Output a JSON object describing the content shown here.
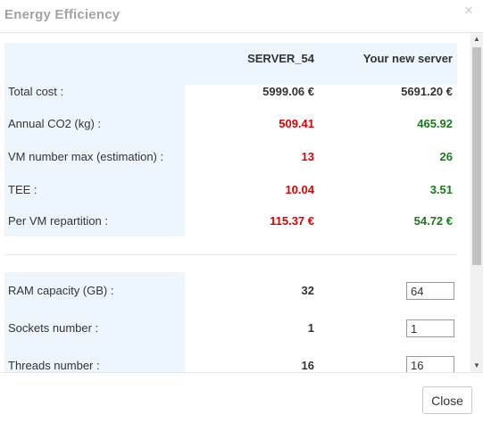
{
  "dialog": {
    "title": "Energy Efficiency",
    "close_glyph": "×",
    "close_icon": "close-icon"
  },
  "table": {
    "columns": [
      "SERVER_54",
      "Your new server"
    ],
    "summary_rows": [
      {
        "label": "Total cost :",
        "values": [
          "5999.06 €",
          "5691.20 €"
        ],
        "colors": [
          "#333333",
          "#333333"
        ]
      },
      {
        "label": "Annual CO2 (kg) :",
        "values": [
          "509.41",
          "465.92"
        ],
        "colors": [
          "#e00000",
          "#1a7a1a"
        ]
      },
      {
        "label": "VM number max (estimation) :",
        "values": [
          "13",
          "26"
        ],
        "colors": [
          "#e00000",
          "#1a7a1a"
        ]
      },
      {
        "label": "TEE :",
        "values": [
          "10.04",
          "3.51"
        ],
        "colors": [
          "#e00000",
          "#1a7a1a"
        ]
      },
      {
        "label": "Per VM repartition :",
        "values": [
          "115.37 €",
          "54.72 €"
        ],
        "colors": [
          "#e00000",
          "#1a7a1a"
        ]
      }
    ],
    "config_rows": [
      {
        "label": "RAM capacity (GB) :",
        "current": "32",
        "new": "64"
      },
      {
        "label": "Sockets number :",
        "current": "1",
        "new": "1"
      },
      {
        "label": "Threads number :",
        "current": "16",
        "new": "16"
      }
    ]
  },
  "scrollbar": {
    "up_glyph": "▲",
    "down_glyph": "▼"
  },
  "footer": {
    "close_label": "Close"
  }
}
